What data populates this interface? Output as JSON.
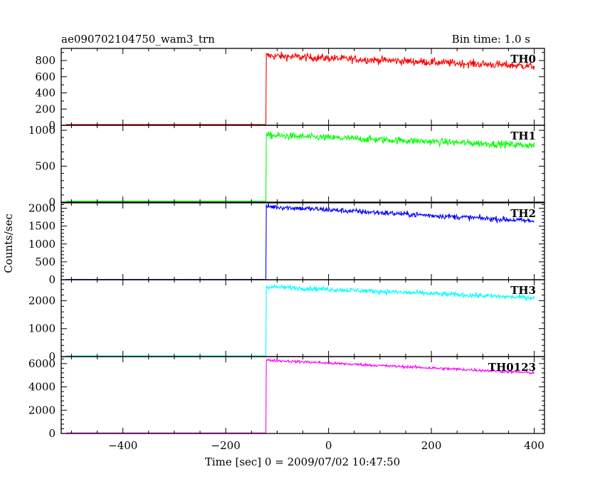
{
  "header": {
    "title": "ae090702104750_wam3_trn",
    "bin_time": "Bin time: 1.0 s"
  },
  "axes": {
    "ylabel": "Counts/sec",
    "xlabel": "Time [sec] 0 = 2009/07/02 10:47:50"
  },
  "chart_data": {
    "type": "line",
    "x_range": [
      -520,
      420
    ],
    "x_ticks": [
      -400,
      -200,
      0,
      200,
      400
    ],
    "x_tick_labels": [
      "−400",
      "−200",
      "0",
      "200",
      "400"
    ],
    "onset_time": -122,
    "end_time": 400,
    "start_time": -510,
    "series": [
      {
        "name": "TH0",
        "color": "#ff0000",
        "ylim": [
          0,
          950
        ],
        "y_ticks": [
          0,
          200,
          400,
          600,
          800
        ],
        "background": 10,
        "peak": 860,
        "end_level": 730,
        "noise": 45
      },
      {
        "name": "TH1",
        "color": "#00ff00",
        "ylim": [
          0,
          1070
        ],
        "y_ticks": [
          0,
          500,
          1000
        ],
        "background": 15,
        "peak": 930,
        "end_level": 790,
        "noise": 45
      },
      {
        "name": "TH2",
        "color": "#0000ff",
        "ylim": [
          0,
          2150
        ],
        "y_ticks": [
          0,
          500,
          1000,
          1500,
          2000
        ],
        "background": 10,
        "peak": 2050,
        "end_level": 1640,
        "noise": 70
      },
      {
        "name": "TH3",
        "color": "#00ffff",
        "ylim": [
          0,
          2750
        ],
        "y_ticks": [
          0,
          1000,
          2000
        ],
        "background": 25,
        "peak": 2500,
        "end_level": 2100,
        "noise": 80
      },
      {
        "name": "TH0123",
        "color": "#ff00ff",
        "ylim": [
          0,
          6600
        ],
        "y_ticks": [
          0,
          2000,
          4000,
          6000
        ],
        "background": 40,
        "peak": 6300,
        "end_level": 5200,
        "noise": 110
      }
    ]
  }
}
